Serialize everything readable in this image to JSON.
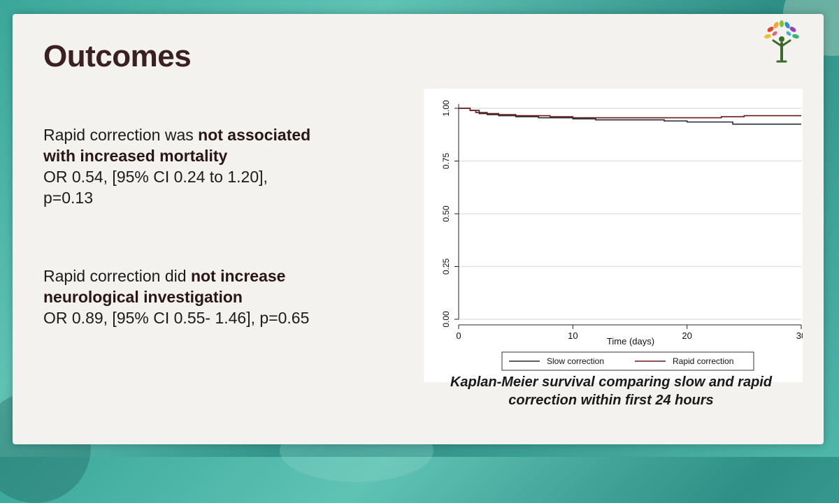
{
  "slide": {
    "title": "Outcomes",
    "block1": {
      "line1_plain": "Rapid correction was ",
      "line1_bold": "not associated",
      "line2_bold": "with increased mortality",
      "line3": "OR 0.54, [95% CI 0.24 to 1.20],",
      "line4": "p=0.13"
    },
    "block2": {
      "line1_plain": "Rapid correction did ",
      "line1_bold": "not increase",
      "line2_bold": "neurological investigation",
      "line3": "OR 0.89, [95% CI 0.55- 1.46], p=0.65"
    },
    "caption_line1": "Kaplan-Meier survival comparing slow and rapid",
    "caption_line2": "correction within first 24 hours",
    "logo_icon": "tree-figure-logo-icon"
  },
  "colors": {
    "title": "#3a2020",
    "slow_line": "#1f2a33",
    "rapid_line": "#6b1a1a",
    "grid": "#e2e2e2"
  },
  "chart_data": {
    "type": "line",
    "step": true,
    "xlabel": "Time (days)",
    "ylabel": "",
    "xlim": [
      0,
      30
    ],
    "ylim": [
      0,
      1
    ],
    "xticks": [
      0,
      10,
      20,
      30
    ],
    "yticks": [
      0,
      0.25,
      0.5,
      0.75,
      1
    ],
    "xtick_labels": [
      "0",
      "10",
      "20",
      "30"
    ],
    "ytick_labels": [
      "0.00",
      "0.25",
      "0.50",
      "0.75",
      "1.00"
    ],
    "grid": true,
    "legend_position": "bottom",
    "series": [
      {
        "name": "Slow correction",
        "color": "#1f2a33",
        "x": [
          0,
          1.0,
          1.8,
          2.5,
          3.5,
          5.0,
          7.0,
          9.0,
          10.0,
          12.0,
          15.0,
          18.0,
          20.0,
          24.0,
          30.0
        ],
        "y": [
          1.0,
          0.99,
          0.975,
          0.97,
          0.965,
          0.96,
          0.955,
          0.955,
          0.95,
          0.945,
          0.945,
          0.94,
          0.935,
          0.925,
          0.925
        ]
      },
      {
        "name": "Rapid correction",
        "color": "#6b1a1a",
        "x": [
          0,
          1.0,
          1.5,
          2.5,
          3.5,
          5.0,
          8.0,
          10.0,
          12.0,
          15.0,
          20.0,
          23.0,
          25.0,
          30.0
        ],
        "y": [
          1.0,
          0.99,
          0.98,
          0.975,
          0.97,
          0.965,
          0.96,
          0.955,
          0.955,
          0.955,
          0.955,
          0.96,
          0.965,
          0.965
        ]
      }
    ]
  }
}
